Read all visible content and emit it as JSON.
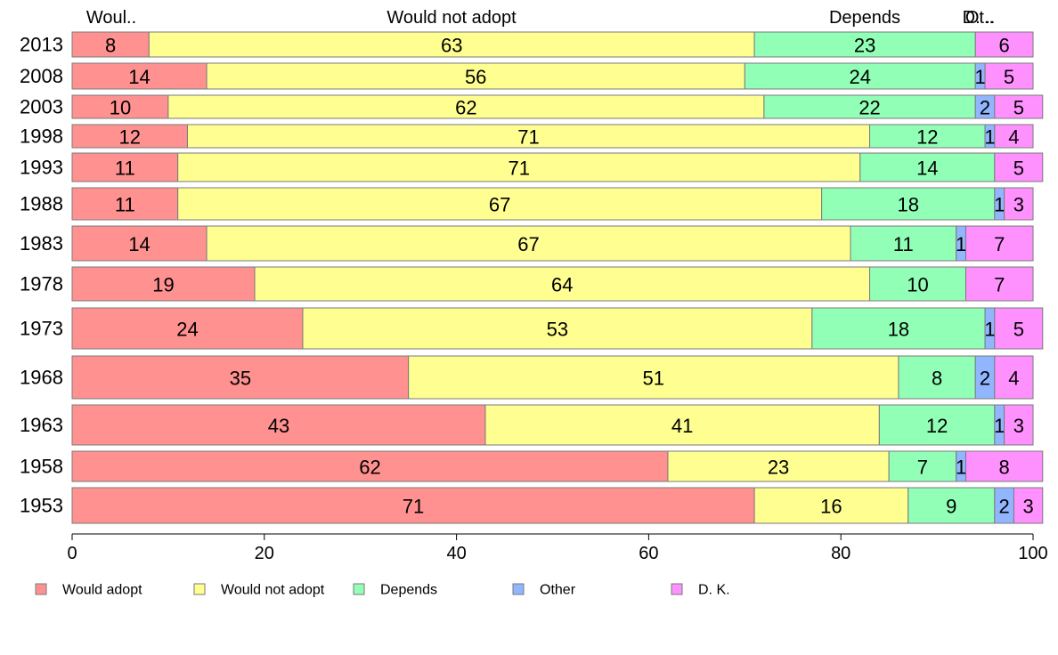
{
  "chart_data": {
    "type": "bar",
    "orientation": "horizontal",
    "stacked": true,
    "categories": [
      "2013",
      "2008",
      "2003",
      "1998",
      "1993",
      "1988",
      "1983",
      "1978",
      "1973",
      "1968",
      "1963",
      "1958",
      "1953"
    ],
    "series": [
      {
        "name": "Would adopt",
        "color": "#ff9191",
        "values": [
          8,
          14,
          10,
          12,
          11,
          11,
          14,
          19,
          24,
          35,
          43,
          62,
          71
        ]
      },
      {
        "name": "Would not adopt",
        "color": "#ffff91",
        "values": [
          63,
          56,
          62,
          71,
          71,
          67,
          67,
          64,
          53,
          51,
          41,
          23,
          16
        ]
      },
      {
        "name": "Depends",
        "color": "#91ffb6",
        "values": [
          23,
          24,
          22,
          12,
          14,
          18,
          11,
          10,
          18,
          8,
          12,
          7,
          9
        ]
      },
      {
        "name": "Other",
        "color": "#91b6ff",
        "values": [
          0,
          1,
          2,
          1,
          0,
          1,
          1,
          0,
          1,
          2,
          1,
          1,
          2
        ]
      },
      {
        "name": "D. K.",
        "color": "#ff91ff",
        "values": [
          6,
          5,
          5,
          4,
          5,
          3,
          7,
          7,
          5,
          4,
          3,
          8,
          3
        ]
      }
    ],
    "bar_value_labels": [
      [
        "8",
        "63",
        "23",
        "",
        "6"
      ],
      [
        "14",
        "56",
        "24",
        "1",
        "5"
      ],
      [
        "10",
        "62",
        "22",
        "2",
        "5"
      ],
      [
        "12",
        "71",
        "12",
        "1",
        "4"
      ],
      [
        "11",
        "71",
        "14",
        "",
        "5"
      ],
      [
        "11",
        "67",
        "18",
        "1",
        "3"
      ],
      [
        "14",
        "67",
        "11",
        "1",
        "7"
      ],
      [
        "19",
        "64",
        "10",
        "",
        "7"
      ],
      [
        "24",
        "53",
        "18",
        "1",
        "5"
      ],
      [
        "35",
        "51",
        "8",
        "2",
        "4"
      ],
      [
        "43",
        "41",
        "12",
        "1",
        "3"
      ],
      [
        "62",
        "23",
        "7",
        "1",
        "8"
      ],
      [
        "71",
        "16",
        "9",
        "2",
        "3"
      ]
    ],
    "top_labels": [
      "Woul..",
      "Would not adopt",
      "Depends",
      "Ot..",
      "D. .."
    ],
    "x_ticks": [
      "0",
      "20",
      "40",
      "60",
      "80",
      "100"
    ],
    "xlim": [
      0,
      100
    ],
    "grid": false,
    "legend": {
      "position": "bottom",
      "labels": [
        "Would adopt",
        "Would not adopt",
        "Depends",
        "Other",
        "D. K."
      ]
    },
    "title": "",
    "xlabel": "",
    "ylabel": ""
  }
}
